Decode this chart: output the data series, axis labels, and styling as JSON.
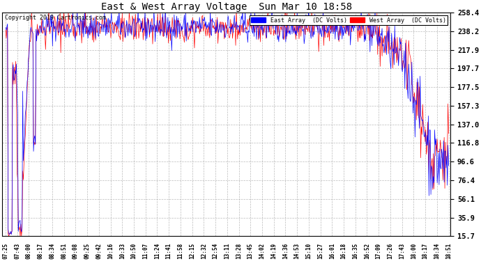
{
  "title": "East & West Array Voltage  Sun Mar 10 18:58",
  "copyright": "Copyright 2019 Cartronics.com",
  "legend_east": "East Array  (DC Volts)",
  "legend_west": "West Array  (DC Volts)",
  "east_color": "#0000ff",
  "west_color": "#ff0000",
  "bg_color": "#ffffff",
  "plot_bg_color": "#ffffff",
  "grid_color": "#aaaaaa",
  "yticks": [
    15.7,
    35.9,
    56.1,
    76.4,
    96.6,
    116.8,
    137.0,
    157.3,
    177.5,
    197.7,
    217.9,
    238.2,
    258.4
  ],
  "ymin": 15.7,
  "ymax": 258.4,
  "x_labels": [
    "07:25",
    "07:43",
    "08:00",
    "08:17",
    "08:34",
    "08:51",
    "09:08",
    "09:25",
    "09:42",
    "10:16",
    "10:33",
    "10:50",
    "11:07",
    "11:24",
    "11:41",
    "11:58",
    "12:15",
    "12:32",
    "12:54",
    "13:11",
    "13:28",
    "13:45",
    "14:02",
    "14:19",
    "14:36",
    "14:53",
    "15:10",
    "15:27",
    "16:01",
    "16:18",
    "16:35",
    "16:52",
    "17:09",
    "17:26",
    "17:43",
    "18:00",
    "18:17",
    "18:34",
    "18:51"
  ],
  "n_points": 700,
  "figwidth": 6.9,
  "figheight": 3.75,
  "dpi": 100
}
